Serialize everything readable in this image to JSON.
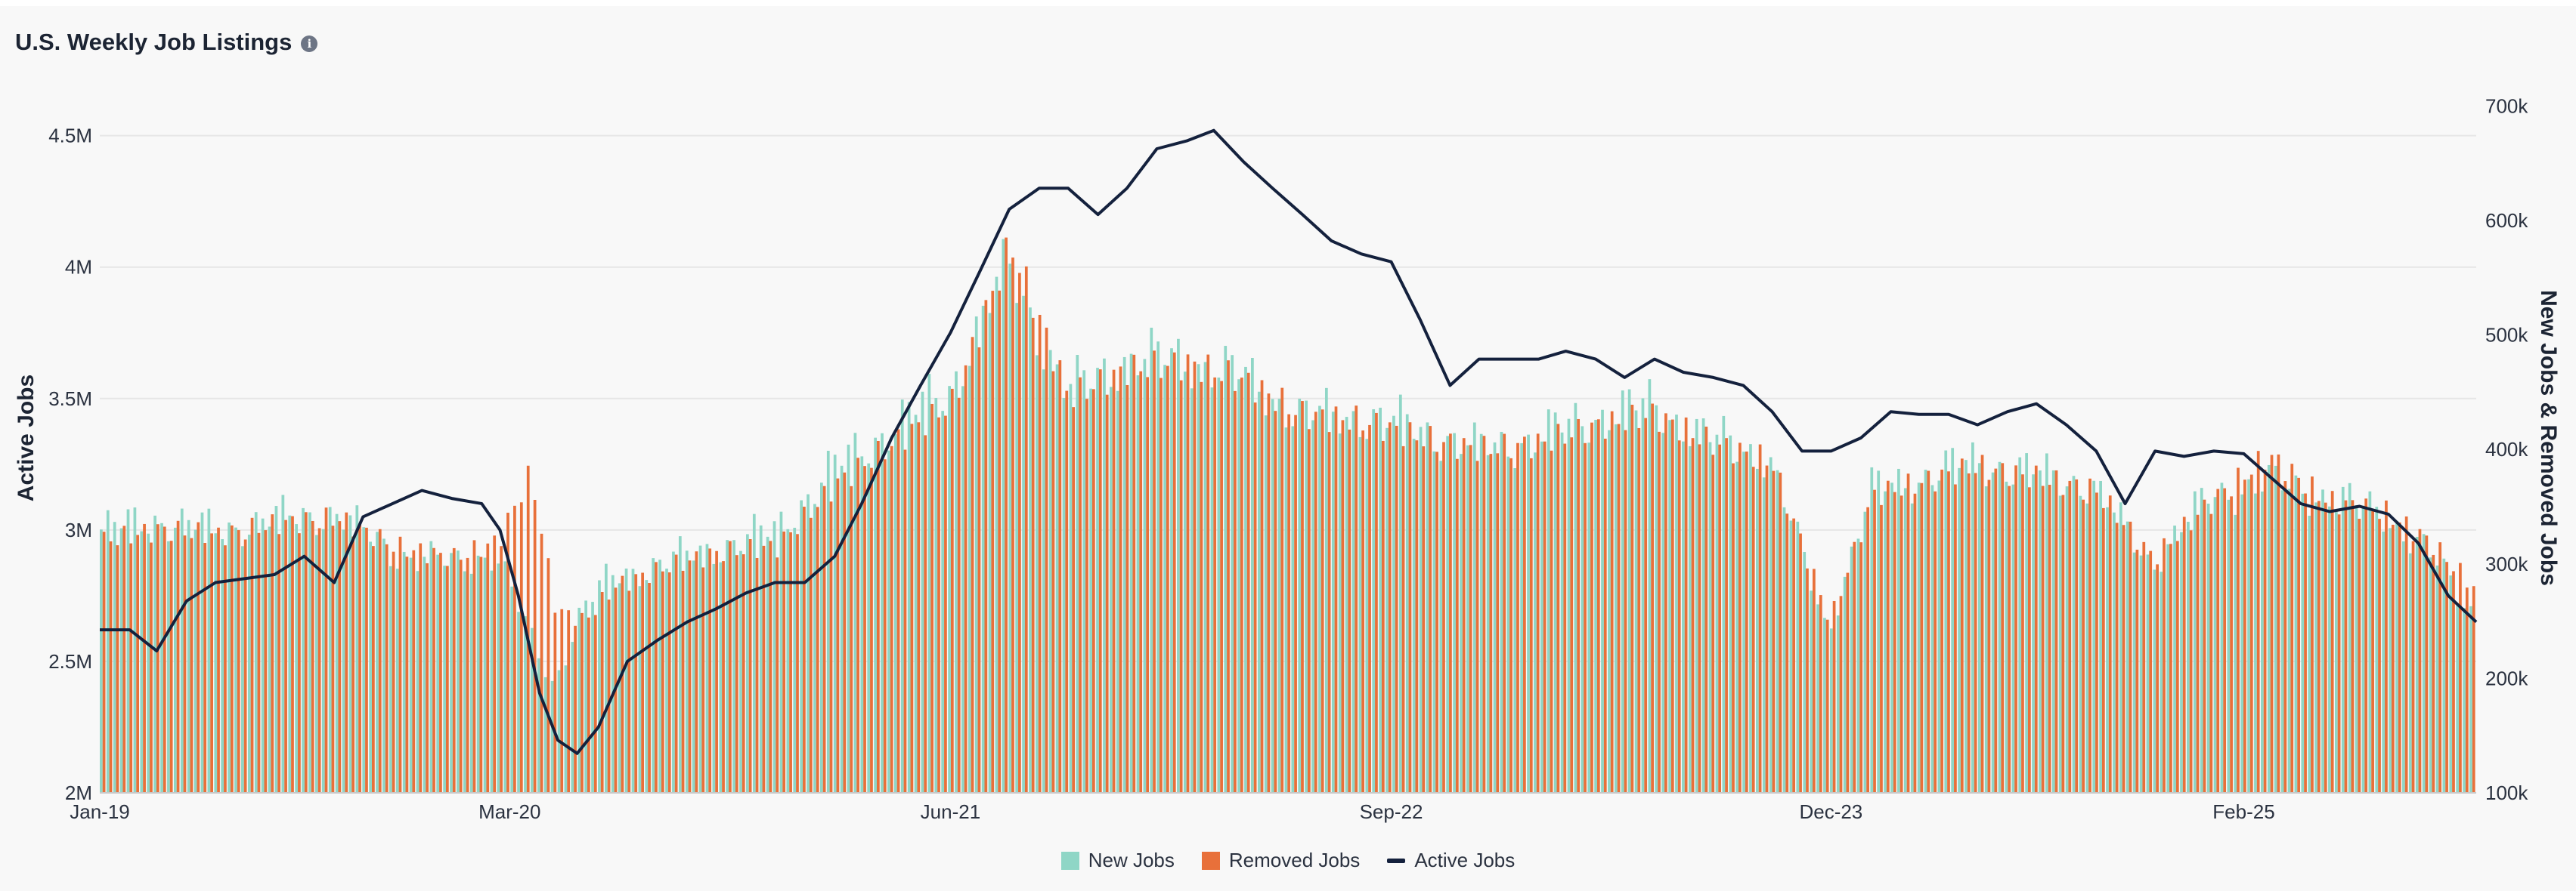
{
  "header": {
    "title": "U.S. Weekly Job Listings",
    "info_icon": "info-icon"
  },
  "colors": {
    "new_jobs": "#8fd6c6",
    "removed_jobs": "#e8703a",
    "active_jobs": "#14213d",
    "grid": "#e6e6e6"
  },
  "chart_data": {
    "type": "bar",
    "title": "U.S. Weekly Job Listings",
    "ylabel": "Active Jobs",
    "y2label": "New Jobs & Removed Jobs",
    "ylim": [
      2000000,
      4700000
    ],
    "y2lim": [
      100000,
      720000
    ],
    "y_ticks": [
      {
        "v": 2000000,
        "label": "2M"
      },
      {
        "v": 2500000,
        "label": "2.5M"
      },
      {
        "v": 3000000,
        "label": "3M"
      },
      {
        "v": 3500000,
        "label": "3.5M"
      },
      {
        "v": 4000000,
        "label": "4M"
      },
      {
        "v": 4500000,
        "label": "4.5M"
      }
    ],
    "y2_ticks": [
      {
        "v": 100000,
        "label": "100k"
      },
      {
        "v": 200000,
        "label": "200k"
      },
      {
        "v": 300000,
        "label": "300k"
      },
      {
        "v": 400000,
        "label": "400k"
      },
      {
        "v": 500000,
        "label": "500k"
      },
      {
        "v": 600000,
        "label": "600k"
      },
      {
        "v": 700000,
        "label": "700k"
      }
    ],
    "x_ticks": [
      {
        "v": "2019-01-01",
        "label": "Jan-19"
      },
      {
        "v": "2020-03-01",
        "label": "Mar-20"
      },
      {
        "v": "2021-06-01",
        "label": "Jun-21"
      },
      {
        "v": "2022-09-01",
        "label": "Sep-22"
      },
      {
        "v": "2023-12-01",
        "label": "Dec-23"
      },
      {
        "v": "2025-02-01",
        "label": "Feb-25"
      }
    ],
    "x_range": [
      "2019-01-01",
      "2025-09-30"
    ],
    "grid": true,
    "legend_position": "bottom-center",
    "series": [
      {
        "name": "New Jobs",
        "type": "bar",
        "axis": "right",
        "points": [
          [
            "2019-01-01",
            330000
          ],
          [
            "2019-03-01",
            340000
          ],
          [
            "2019-05-01",
            330000
          ],
          [
            "2019-07-01",
            340000
          ],
          [
            "2019-09-01",
            345000
          ],
          [
            "2019-11-01",
            310000
          ],
          [
            "2020-01-01",
            300000
          ],
          [
            "2020-02-15",
            310000
          ],
          [
            "2020-03-20",
            240000
          ],
          [
            "2020-04-15",
            195000
          ],
          [
            "2020-05-15",
            260000
          ],
          [
            "2020-06-15",
            290000
          ],
          [
            "2020-08-01",
            300000
          ],
          [
            "2020-10-01",
            315000
          ],
          [
            "2020-12-01",
            330000
          ],
          [
            "2021-02-01",
            385000
          ],
          [
            "2021-04-01",
            420000
          ],
          [
            "2021-06-01",
            455000
          ],
          [
            "2021-08-01",
            560000
          ],
          [
            "2021-10-01",
            450000
          ],
          [
            "2021-12-01",
            480000
          ],
          [
            "2022-02-01",
            480000
          ],
          [
            "2022-04-01",
            465000
          ],
          [
            "2022-06-01",
            430000
          ],
          [
            "2022-08-01",
            430000
          ],
          [
            "2022-10-01",
            420000
          ],
          [
            "2022-12-01",
            400000
          ],
          [
            "2023-02-01",
            410000
          ],
          [
            "2023-04-01",
            430000
          ],
          [
            "2023-06-01",
            440000
          ],
          [
            "2023-08-01",
            410000
          ],
          [
            "2023-10-01",
            395000
          ],
          [
            "2023-12-01",
            240000
          ],
          [
            "2024-01-15",
            365000
          ],
          [
            "2024-03-01",
            375000
          ],
          [
            "2024-05-01",
            390000
          ],
          [
            "2024-07-01",
            380000
          ],
          [
            "2024-09-01",
            370000
          ],
          [
            "2024-11-01",
            300000
          ],
          [
            "2025-01-01",
            360000
          ],
          [
            "2025-03-01",
            370000
          ],
          [
            "2025-05-01",
            360000
          ],
          [
            "2025-07-01",
            345000
          ],
          [
            "2025-08-15",
            310000
          ],
          [
            "2025-09-30",
            260000
          ]
        ]
      },
      {
        "name": "Removed Jobs",
        "type": "bar",
        "axis": "right",
        "points": [
          [
            "2019-01-01",
            320000
          ],
          [
            "2019-03-01",
            330000
          ],
          [
            "2019-05-01",
            325000
          ],
          [
            "2019-07-01",
            335000
          ],
          [
            "2019-09-01",
            340000
          ],
          [
            "2019-11-01",
            315000
          ],
          [
            "2020-01-01",
            305000
          ],
          [
            "2020-02-15",
            320000
          ],
          [
            "2020-03-20",
            380000
          ],
          [
            "2020-04-15",
            260000
          ],
          [
            "2020-05-15",
            250000
          ],
          [
            "2020-06-15",
            280000
          ],
          [
            "2020-08-01",
            295000
          ],
          [
            "2020-10-01",
            310000
          ],
          [
            "2020-12-01",
            315000
          ],
          [
            "2021-02-01",
            370000
          ],
          [
            "2021-04-01",
            405000
          ],
          [
            "2021-06-01",
            440000
          ],
          [
            "2021-08-01",
            580000
          ],
          [
            "2021-10-01",
            445000
          ],
          [
            "2021-12-01",
            470000
          ],
          [
            "2022-02-01",
            475000
          ],
          [
            "2022-04-01",
            460000
          ],
          [
            "2022-06-01",
            430000
          ],
          [
            "2022-08-01",
            425000
          ],
          [
            "2022-10-01",
            410000
          ],
          [
            "2022-12-01",
            400000
          ],
          [
            "2023-02-01",
            405000
          ],
          [
            "2023-04-01",
            420000
          ],
          [
            "2023-06-01",
            430000
          ],
          [
            "2023-08-01",
            405000
          ],
          [
            "2023-10-01",
            390000
          ],
          [
            "2023-12-01",
            250000
          ],
          [
            "2024-01-15",
            360000
          ],
          [
            "2024-03-01",
            370000
          ],
          [
            "2024-05-01",
            385000
          ],
          [
            "2024-07-01",
            375000
          ],
          [
            "2024-09-01",
            365000
          ],
          [
            "2024-11-01",
            305000
          ],
          [
            "2025-01-01",
            355000
          ],
          [
            "2025-03-01",
            395000
          ],
          [
            "2025-05-01",
            355000
          ],
          [
            "2025-07-01",
            345000
          ],
          [
            "2025-08-15",
            320000
          ],
          [
            "2025-09-30",
            280000
          ]
        ]
      },
      {
        "name": "Active Jobs",
        "type": "line",
        "axis": "left",
        "points": [
          [
            "2019-01-01",
            2620000
          ],
          [
            "2019-02-01",
            2620000
          ],
          [
            "2019-03-01",
            2540000
          ],
          [
            "2019-04-01",
            2730000
          ],
          [
            "2019-05-01",
            2800000
          ],
          [
            "2019-07-01",
            2830000
          ],
          [
            "2019-08-01",
            2900000
          ],
          [
            "2019-09-01",
            2800000
          ],
          [
            "2019-10-01",
            3050000
          ],
          [
            "2019-12-01",
            3150000
          ],
          [
            "2020-01-01",
            3120000
          ],
          [
            "2020-02-01",
            3100000
          ],
          [
            "2020-02-20",
            3000000
          ],
          [
            "2020-03-10",
            2750000
          ],
          [
            "2020-04-01",
            2380000
          ],
          [
            "2020-04-20",
            2200000
          ],
          [
            "2020-05-10",
            2150000
          ],
          [
            "2020-06-01",
            2250000
          ],
          [
            "2020-07-01",
            2500000
          ],
          [
            "2020-08-01",
            2580000
          ],
          [
            "2020-09-01",
            2650000
          ],
          [
            "2020-10-01",
            2700000
          ],
          [
            "2020-11-01",
            2760000
          ],
          [
            "2020-12-01",
            2800000
          ],
          [
            "2021-01-01",
            2800000
          ],
          [
            "2021-02-01",
            2900000
          ],
          [
            "2021-03-01",
            3100000
          ],
          [
            "2021-04-01",
            3350000
          ],
          [
            "2021-05-01",
            3550000
          ],
          [
            "2021-06-01",
            3750000
          ],
          [
            "2021-07-01",
            3980000
          ],
          [
            "2021-08-01",
            4220000
          ],
          [
            "2021-09-01",
            4300000
          ],
          [
            "2021-10-01",
            4300000
          ],
          [
            "2021-11-01",
            4200000
          ],
          [
            "2021-12-01",
            4300000
          ],
          [
            "2022-01-01",
            4450000
          ],
          [
            "2022-02-01",
            4480000
          ],
          [
            "2022-03-01",
            4520000
          ],
          [
            "2022-04-01",
            4400000
          ],
          [
            "2022-05-01",
            4300000
          ],
          [
            "2022-06-01",
            4200000
          ],
          [
            "2022-07-01",
            4100000
          ],
          [
            "2022-08-01",
            4050000
          ],
          [
            "2022-09-01",
            4020000
          ],
          [
            "2022-10-01",
            3800000
          ],
          [
            "2022-11-01",
            3550000
          ],
          [
            "2022-12-01",
            3650000
          ],
          [
            "2023-02-01",
            3650000
          ],
          [
            "2023-03-01",
            3680000
          ],
          [
            "2023-04-01",
            3650000
          ],
          [
            "2023-05-01",
            3580000
          ],
          [
            "2023-06-01",
            3650000
          ],
          [
            "2023-07-01",
            3600000
          ],
          [
            "2023-08-01",
            3580000
          ],
          [
            "2023-09-01",
            3550000
          ],
          [
            "2023-10-01",
            3450000
          ],
          [
            "2023-11-01",
            3300000
          ],
          [
            "2023-12-01",
            3300000
          ],
          [
            "2024-01-01",
            3350000
          ],
          [
            "2024-02-01",
            3450000
          ],
          [
            "2024-03-01",
            3440000
          ],
          [
            "2024-04-01",
            3440000
          ],
          [
            "2024-05-01",
            3400000
          ],
          [
            "2024-06-01",
            3450000
          ],
          [
            "2024-07-01",
            3480000
          ],
          [
            "2024-08-01",
            3400000
          ],
          [
            "2024-09-01",
            3300000
          ],
          [
            "2024-10-01",
            3100000
          ],
          [
            "2024-11-01",
            3300000
          ],
          [
            "2024-12-01",
            3280000
          ],
          [
            "2025-01-01",
            3300000
          ],
          [
            "2025-02-01",
            3290000
          ],
          [
            "2025-03-01",
            3200000
          ],
          [
            "2025-04-01",
            3100000
          ],
          [
            "2025-05-01",
            3070000
          ],
          [
            "2025-06-01",
            3090000
          ],
          [
            "2025-07-01",
            3060000
          ],
          [
            "2025-08-01",
            2950000
          ],
          [
            "2025-09-01",
            2750000
          ],
          [
            "2025-09-30",
            2650000
          ]
        ]
      }
    ]
  },
  "legend": [
    {
      "label": "New Jobs",
      "color": "#8fd6c6",
      "kind": "box"
    },
    {
      "label": "Removed Jobs",
      "color": "#e8703a",
      "kind": "box"
    },
    {
      "label": "Active Jobs",
      "color": "#14213d",
      "kind": "line"
    }
  ]
}
